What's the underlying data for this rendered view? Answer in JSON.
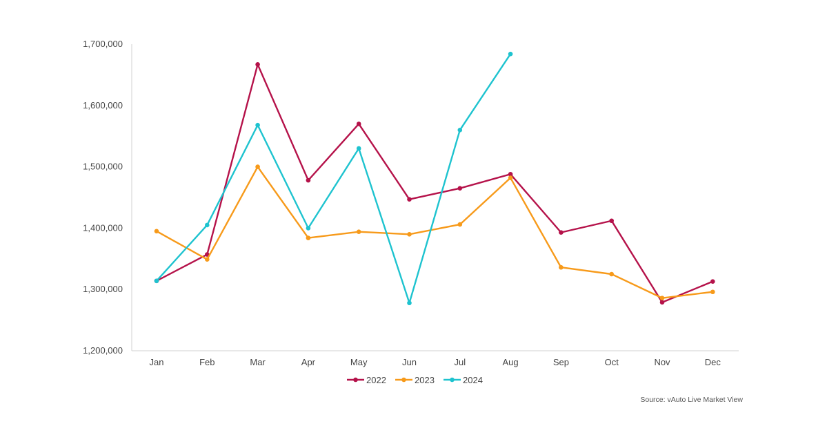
{
  "chart_data": {
    "type": "line",
    "categories": [
      "Jan",
      "Feb",
      "Mar",
      "Apr",
      "May",
      "Jun",
      "Jul",
      "Aug",
      "Sep",
      "Oct",
      "Nov",
      "Dec"
    ],
    "series": [
      {
        "name": "2022",
        "color": "#b5124a",
        "values": [
          1314000,
          1357000,
          1667000,
          1478000,
          1570000,
          1447000,
          1465000,
          1488000,
          1393000,
          1412000,
          1279000,
          1313000
        ]
      },
      {
        "name": "2023",
        "color": "#f79a1a",
        "values": [
          1395000,
          1349000,
          1500000,
          1384000,
          1394000,
          1390000,
          1406000,
          1482000,
          1336000,
          1325000,
          1286000,
          1296000
        ]
      },
      {
        "name": "2024",
        "color": "#1ec3cf",
        "values": [
          1314000,
          1405000,
          1568000,
          1400000,
          1530000,
          1278000,
          1560000,
          1684000,
          null,
          null,
          null,
          null
        ]
      }
    ],
    "ylim": [
      1200000,
      1700000
    ],
    "yticks": [
      "1,200,000",
      "1,300,000",
      "1,400,000",
      "1,500,000",
      "1,600,000",
      "1,700,000"
    ],
    "grid": false,
    "legend_position": "bottom",
    "xlabel": "",
    "ylabel": ""
  },
  "source": "Source: vAuto Live Market View"
}
